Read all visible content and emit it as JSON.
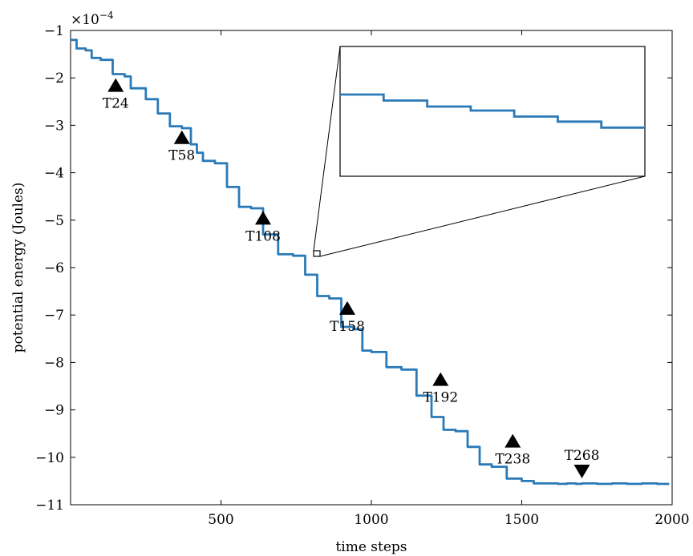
{
  "chart_data": {
    "type": "line",
    "title": "",
    "xlabel": "time steps",
    "ylabel": "potential energy (Joules)",
    "y_multiplier": "×10",
    "y_multiplier_exponent": "−4",
    "xlim": [
      0,
      2000
    ],
    "ylim": [
      -11,
      -1
    ],
    "x_ticks": [
      500,
      1000,
      1500,
      2000
    ],
    "x_tick_labels": [
      "500",
      "1000",
      "1500",
      "2000"
    ],
    "y_ticks": [
      -1,
      -2,
      -3,
      -4,
      -5,
      -6,
      -7,
      -8,
      -9,
      -10,
      -11
    ],
    "y_tick_labels": [
      "−1",
      "−2",
      "−3",
      "−4",
      "−5",
      "−6",
      "−7",
      "−8",
      "−9",
      "−10",
      "−11"
    ],
    "grid": false,
    "line_color": "#2a7ab8",
    "series": [
      {
        "x": [
          0,
          20,
          50,
          70,
          100,
          140,
          180,
          200,
          250,
          290,
          330,
          370,
          400,
          420,
          440,
          480,
          520,
          560,
          600,
          640,
          690,
          740,
          780,
          820,
          860,
          900,
          940,
          970,
          1000,
          1050,
          1100,
          1150,
          1200,
          1240,
          1280,
          1320,
          1360,
          1400,
          1450,
          1500,
          1540,
          1580,
          1620,
          1650,
          1680,
          1700,
          1750,
          1800,
          1850,
          1900,
          1950,
          1990
        ],
        "y": [
          -1.2,
          -1.38,
          -1.42,
          -1.58,
          -1.62,
          -1.92,
          -1.97,
          -2.22,
          -2.45,
          -2.75,
          -3.02,
          -3.06,
          -3.4,
          -3.58,
          -3.75,
          -3.8,
          -4.3,
          -4.72,
          -4.75,
          -5.3,
          -5.72,
          -5.75,
          -6.15,
          -6.6,
          -6.65,
          -7.25,
          -7.3,
          -7.75,
          -7.78,
          -8.1,
          -8.15,
          -8.7,
          -9.15,
          -9.42,
          -9.45,
          -9.78,
          -10.15,
          -10.2,
          -10.45,
          -10.5,
          -10.55,
          -10.55,
          -10.56,
          -10.55,
          -10.56,
          -10.55,
          -10.56,
          -10.55,
          -10.56,
          -10.55,
          -10.56,
          -10.56
        ]
      }
    ],
    "markers": [
      {
        "label": "T24",
        "x": 150,
        "y": -2.15,
        "direction": "up"
      },
      {
        "label": "T58",
        "x": 370,
        "y": -3.25,
        "direction": "up"
      },
      {
        "label": "T108",
        "x": 640,
        "y": -4.95,
        "direction": "up"
      },
      {
        "label": "T158",
        "x": 920,
        "y": -6.85,
        "direction": "up"
      },
      {
        "label": "T192",
        "x": 1230,
        "y": -8.35,
        "direction": "up"
      },
      {
        "label": "T238",
        "x": 1470,
        "y": -9.65,
        "direction": "up"
      },
      {
        "label": "T268",
        "x": 1700,
        "y": -10.3,
        "direction": "down"
      }
    ],
    "inset": {
      "source_x": 825,
      "source_y": -5.75,
      "steps": [
        0,
        0.06,
        0.12,
        0.16,
        0.22,
        0.27,
        0.33
      ]
    }
  }
}
